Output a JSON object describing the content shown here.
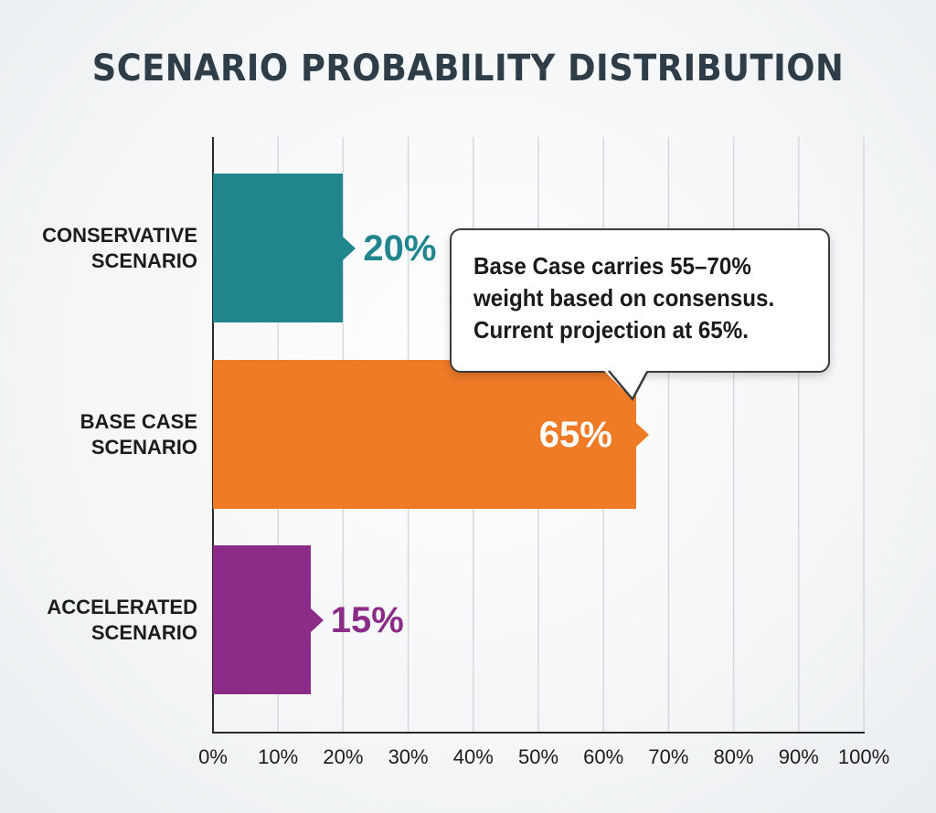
{
  "chart_data": {
    "type": "bar",
    "orientation": "horizontal",
    "title": "SCENARIO PROBABILITY DISTRIBUTION",
    "categories": [
      {
        "line1": "CONSERVATIVE",
        "line2": "SCENARIO"
      },
      {
        "line1": "BASE CASE",
        "line2": "SCENARIO"
      },
      {
        "line1": "ACCELERATED",
        "line2": "SCENARIO"
      }
    ],
    "values": [
      20,
      65,
      15
    ],
    "value_labels": [
      "20%",
      "65%",
      "15%"
    ],
    "colors": [
      "#21858e",
      "#f07b27",
      "#8a2c88"
    ],
    "value_label_colors": [
      "#21858e",
      "#ffffff",
      "#8a2c88"
    ],
    "xlim": [
      0,
      100
    ],
    "xticks": [
      0,
      10,
      20,
      30,
      40,
      50,
      60,
      70,
      80,
      90,
      100
    ],
    "xtick_labels": [
      "0%",
      "10%",
      "20%",
      "30%",
      "40%",
      "50%",
      "60%",
      "70%",
      "80%",
      "90%",
      "100%"
    ],
    "grid": true,
    "annotation": {
      "text_lines": [
        "Base Case carries 55–70%",
        "weight based on consensus.",
        "Current projection at 65%."
      ],
      "points_to_category": 1
    }
  }
}
